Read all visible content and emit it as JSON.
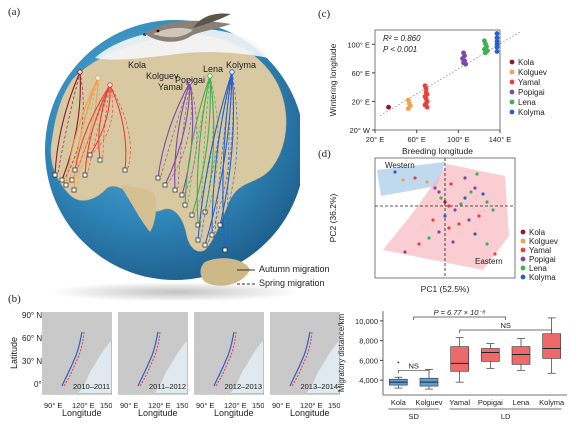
{
  "panels": {
    "a": {
      "label": "(a)",
      "sites": [
        "Kola",
        "Kolguev",
        "Yamal",
        "Popigai",
        "Lena",
        "Kolyma"
      ],
      "legend": {
        "autumn": "Autumn migration",
        "spring": "Spring migration"
      }
    },
    "b": {
      "label": "(b)",
      "ylabel": "Latitude",
      "xlabel": "Longitude",
      "yticks": [
        "90° N",
        "60° N",
        "30° N",
        "0°"
      ],
      "xticks": [
        "90° E",
        "120° E",
        "150° E"
      ],
      "years": [
        "2010–2011",
        "2011–2012",
        "2012–2013",
        "2013–2014"
      ]
    },
    "c": {
      "label": "(c)"
    },
    "d": {
      "label": "(d)"
    }
  },
  "chart_data": [
    {
      "type": "scatter",
      "panel": "c",
      "xlabel": "Breeding longitude",
      "ylabel": "Wintering longitude",
      "xticks": [
        "20° E",
        "60° E",
        "100° E",
        "140° E"
      ],
      "yticks": [
        "20° W",
        "20° E",
        "60° E",
        "100° E"
      ],
      "xlim": [
        20,
        140
      ],
      "ylim": [
        -20,
        120
      ],
      "annotation": {
        "r2": "R² = 0.860",
        "p": "P < 0.001"
      },
      "series": [
        {
          "name": "Kola",
          "color": "#8b1a2b",
          "points": [
            [
              33,
              12
            ]
          ]
        },
        {
          "name": "Kolguev",
          "color": "#f0a050",
          "points": [
            [
              52,
              22
            ],
            [
              53,
              17
            ],
            [
              54,
              14
            ],
            [
              52,
              10
            ]
          ]
        },
        {
          "name": "Yamal",
          "color": "#e8403a",
          "points": [
            [
              68,
              42
            ],
            [
              69,
              38
            ],
            [
              69,
              33
            ],
            [
              70,
              30
            ],
            [
              68,
              27
            ],
            [
              69,
              24
            ],
            [
              70,
              20
            ],
            [
              69,
              17
            ],
            [
              68,
              15
            ],
            [
              70,
              12
            ]
          ]
        },
        {
          "name": "Popigai",
          "color": "#7b4aa8",
          "points": [
            [
              105,
              88
            ],
            [
              106,
              84
            ],
            [
              104,
              80
            ],
            [
              106,
              77
            ],
            [
              105,
              74
            ],
            [
              107,
              72
            ]
          ]
        },
        {
          "name": "Lena",
          "color": "#40b050",
          "points": [
            [
              125,
              105
            ],
            [
              126,
              101
            ],
            [
              127,
              97
            ],
            [
              125,
              93
            ],
            [
              128,
              91
            ],
            [
              126,
              88
            ]
          ]
        },
        {
          "name": "Kolyma",
          "color": "#2a5fc8",
          "points": [
            [
              155,
              115
            ],
            [
              156,
              109
            ],
            [
              157,
              104
            ],
            [
              155,
              100
            ],
            [
              158,
              96
            ],
            [
              157,
              90
            ]
          ]
        }
      ]
    },
    {
      "type": "scatter",
      "panel": "d",
      "xlabel": "PC1 (52.5%)",
      "ylabel": "PC2 (36.2%)",
      "groups": [
        {
          "name": "Western",
          "color": "#a9cde9"
        },
        {
          "name": "Eastern",
          "color": "#f6b8bf"
        }
      ],
      "series": [
        {
          "name": "Kola",
          "color": "#8b1a2b"
        },
        {
          "name": "Kolguev",
          "color": "#f0a050"
        },
        {
          "name": "Yamal",
          "color": "#e8403a"
        },
        {
          "name": "Popigai",
          "color": "#7b4aa8"
        },
        {
          "name": "Lena",
          "color": "#40b050"
        },
        {
          "name": "Kolyma",
          "color": "#2a5fc8"
        }
      ]
    },
    {
      "type": "box",
      "panel": "d-lower",
      "ylabel": "Migratory distance/km",
      "yticks": [
        "4,000",
        "6,000",
        "8,000",
        "10,000"
      ],
      "ylim": [
        2500,
        11000
      ],
      "annotation": {
        "p": "P = 6.77 × 10⁻⁸",
        "ns1": "NS",
        "ns2": "NS"
      },
      "groups": [
        {
          "name": "SD",
          "members": [
            "Kola",
            "Kolguev"
          ]
        },
        {
          "name": "LD",
          "members": [
            "Yamal",
            "Popigai",
            "Lena",
            "Kolyma"
          ]
        }
      ],
      "boxes": [
        {
          "name": "Kola",
          "color": "#5aa0d8",
          "min": 3200,
          "q1": 3500,
          "median": 3800,
          "q3": 4100,
          "max": 4300,
          "outliers": [
            5800
          ]
        },
        {
          "name": "Kolguev",
          "color": "#5aa0d8",
          "min": 3100,
          "q1": 3400,
          "median": 3800,
          "q3": 4200,
          "max": 5100,
          "outliers": []
        },
        {
          "name": "Yamal",
          "color": "#ee6a6a",
          "min": 3800,
          "q1": 4900,
          "median": 5700,
          "q3": 7400,
          "max": 8300,
          "outliers": []
        },
        {
          "name": "Popigai",
          "color": "#ee6a6a",
          "min": 5200,
          "q1": 5900,
          "median": 6800,
          "q3": 7200,
          "max": 7700,
          "outliers": []
        },
        {
          "name": "Lena",
          "color": "#ee6a6a",
          "min": 5000,
          "q1": 5600,
          "median": 6600,
          "q3": 7400,
          "max": 8200,
          "outliers": []
        },
        {
          "name": "Kolyma",
          "color": "#ee6a6a",
          "min": 4700,
          "q1": 6200,
          "median": 7200,
          "q3": 8700,
          "max": 10300,
          "outliers": []
        }
      ]
    }
  ]
}
